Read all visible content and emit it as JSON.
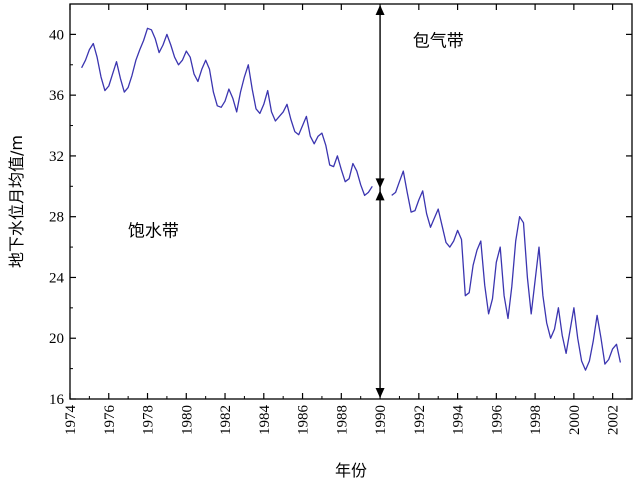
{
  "chart_data": {
    "type": "line",
    "title": "",
    "xlabel": "年份",
    "ylabel": "地下水位月均值/m",
    "xlim": [
      1974,
      2003
    ],
    "ylim": [
      16,
      42
    ],
    "xticks": [
      "1974",
      "1976",
      "1978",
      "1980",
      "1982",
      "1984",
      "1986",
      "1988",
      "1990",
      "1992",
      "1994",
      "1996",
      "1998",
      "2000",
      "2002"
    ],
    "yticks": [
      "16",
      "20",
      "24",
      "28",
      "32",
      "36",
      "40"
    ],
    "grid": false,
    "legend": "none",
    "colors": {
      "series": "#3b35b0",
      "axis": "#000000"
    },
    "annotations": [
      {
        "text": "包气带",
        "x": 1993.0,
        "y": 39.2
      },
      {
        "text": "饱水带",
        "x": 1978.3,
        "y": 26.7
      }
    ],
    "arrow": {
      "x": 1990.0,
      "y_top": 42,
      "y_split": 29.8,
      "y_bottom": 16
    },
    "series": [
      {
        "name": "",
        "segments": [
          [
            [
              1974.6,
              37.8
            ],
            [
              1974.8,
              38.3
            ],
            [
              1975.0,
              39.0
            ],
            [
              1975.2,
              39.4
            ],
            [
              1975.4,
              38.5
            ],
            [
              1975.6,
              37.2
            ],
            [
              1975.8,
              36.3
            ],
            [
              1976.0,
              36.6
            ],
            [
              1976.2,
              37.4
            ],
            [
              1976.4,
              38.2
            ],
            [
              1976.6,
              37.1
            ],
            [
              1976.8,
              36.2
            ],
            [
              1977.0,
              36.5
            ],
            [
              1977.2,
              37.3
            ],
            [
              1977.4,
              38.3
            ],
            [
              1977.6,
              39.0
            ],
            [
              1977.8,
              39.6
            ],
            [
              1978.0,
              40.4
            ],
            [
              1978.2,
              40.3
            ],
            [
              1978.4,
              39.7
            ],
            [
              1978.6,
              38.8
            ],
            [
              1978.8,
              39.3
            ],
            [
              1979.0,
              40.0
            ],
            [
              1979.2,
              39.3
            ],
            [
              1979.4,
              38.5
            ],
            [
              1979.6,
              38.0
            ],
            [
              1979.8,
              38.3
            ],
            [
              1980.0,
              38.9
            ],
            [
              1980.2,
              38.5
            ],
            [
              1980.4,
              37.4
            ],
            [
              1980.6,
              36.9
            ],
            [
              1980.8,
              37.7
            ],
            [
              1981.0,
              38.3
            ],
            [
              1981.2,
              37.7
            ],
            [
              1981.4,
              36.2
            ],
            [
              1981.6,
              35.3
            ],
            [
              1981.8,
              35.2
            ],
            [
              1982.0,
              35.6
            ],
            [
              1982.2,
              36.4
            ],
            [
              1982.4,
              35.8
            ],
            [
              1982.6,
              34.9
            ],
            [
              1982.8,
              36.2
            ],
            [
              1983.0,
              37.2
            ],
            [
              1983.2,
              38.0
            ],
            [
              1983.4,
              36.4
            ],
            [
              1983.6,
              35.1
            ],
            [
              1983.8,
              34.8
            ],
            [
              1984.0,
              35.4
            ],
            [
              1984.2,
              36.3
            ],
            [
              1984.4,
              34.9
            ],
            [
              1984.6,
              34.3
            ],
            [
              1984.8,
              34.6
            ],
            [
              1985.0,
              34.9
            ],
            [
              1985.2,
              35.4
            ],
            [
              1985.4,
              34.4
            ],
            [
              1985.6,
              33.6
            ],
            [
              1985.8,
              33.4
            ],
            [
              1986.0,
              34.0
            ],
            [
              1986.2,
              34.6
            ],
            [
              1986.4,
              33.3
            ],
            [
              1986.6,
              32.8
            ],
            [
              1986.8,
              33.3
            ],
            [
              1987.0,
              33.5
            ],
            [
              1987.2,
              32.7
            ],
            [
              1987.4,
              31.4
            ],
            [
              1987.6,
              31.3
            ],
            [
              1987.8,
              32.0
            ],
            [
              1988.0,
              31.1
            ],
            [
              1988.2,
              30.3
            ],
            [
              1988.4,
              30.5
            ],
            [
              1988.6,
              31.5
            ],
            [
              1988.8,
              31.0
            ],
            [
              1989.0,
              30.1
            ],
            [
              1989.2,
              29.4
            ],
            [
              1989.4,
              29.6
            ],
            [
              1989.6,
              30.0
            ]
          ],
          [
            [
              1990.6,
              29.4
            ],
            [
              1990.8,
              29.6
            ],
            [
              1991.0,
              30.3
            ],
            [
              1991.2,
              31.0
            ],
            [
              1991.4,
              29.6
            ],
            [
              1991.6,
              28.3
            ],
            [
              1991.8,
              28.4
            ],
            [
              1992.0,
              29.1
            ],
            [
              1992.2,
              29.7
            ],
            [
              1992.4,
              28.2
            ],
            [
              1992.6,
              27.3
            ],
            [
              1992.8,
              27.9
            ],
            [
              1993.0,
              28.5
            ],
            [
              1993.2,
              27.4
            ],
            [
              1993.4,
              26.3
            ],
            [
              1993.6,
              26.0
            ],
            [
              1993.8,
              26.4
            ],
            [
              1994.0,
              27.1
            ],
            [
              1994.2,
              26.5
            ],
            [
              1994.4,
              22.8
            ],
            [
              1994.6,
              23.0
            ],
            [
              1994.8,
              24.8
            ],
            [
              1995.0,
              25.8
            ],
            [
              1995.2,
              26.4
            ],
            [
              1995.4,
              23.5
            ],
            [
              1995.6,
              21.6
            ],
            [
              1995.8,
              22.6
            ],
            [
              1996.0,
              25.0
            ],
            [
              1996.2,
              26.0
            ],
            [
              1996.4,
              22.8
            ],
            [
              1996.6,
              21.3
            ],
            [
              1996.8,
              23.4
            ],
            [
              1997.0,
              26.4
            ],
            [
              1997.2,
              28.0
            ],
            [
              1997.4,
              27.6
            ],
            [
              1997.6,
              24.0
            ],
            [
              1997.8,
              21.6
            ],
            [
              1998.0,
              23.8
            ],
            [
              1998.2,
              26.0
            ],
            [
              1998.4,
              22.8
            ],
            [
              1998.6,
              21.0
            ],
            [
              1998.8,
              20.0
            ],
            [
              1999.0,
              20.6
            ],
            [
              1999.2,
              22.0
            ],
            [
              1999.4,
              20.2
            ],
            [
              1999.6,
              19.0
            ],
            [
              1999.8,
              20.5
            ],
            [
              2000.0,
              22.0
            ],
            [
              2000.2,
              20.0
            ],
            [
              2000.4,
              18.5
            ],
            [
              2000.6,
              17.9
            ],
            [
              2000.8,
              18.5
            ],
            [
              2001.0,
              19.8
            ],
            [
              2001.2,
              21.5
            ],
            [
              2001.4,
              20.0
            ],
            [
              2001.6,
              18.3
            ],
            [
              2001.8,
              18.6
            ],
            [
              2002.0,
              19.3
            ],
            [
              2002.2,
              19.6
            ],
            [
              2002.4,
              18.4
            ]
          ]
        ]
      }
    ]
  }
}
